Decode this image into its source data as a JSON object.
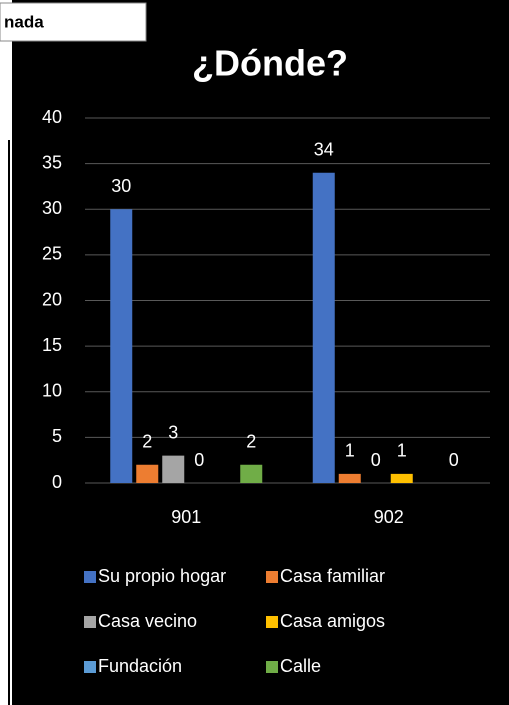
{
  "header_tab": "nada",
  "chart_data": {
    "type": "bar",
    "title": "¿Dónde?",
    "categories": [
      "901",
      "902"
    ],
    "series": [
      {
        "name": "Su propio hogar",
        "color": "#4472c4",
        "values": [
          30,
          34
        ]
      },
      {
        "name": "Casa familiar",
        "color": "#ed7d31",
        "values": [
          2,
          1
        ]
      },
      {
        "name": "Casa vecino",
        "color": "#a5a5a5",
        "values": [
          3,
          0
        ]
      },
      {
        "name": "Casa amigos",
        "color": "#ffc000",
        "values": [
          0,
          1
        ]
      },
      {
        "name": "Fundación",
        "color": "#5b9bd5",
        "values": [
          null,
          null
        ]
      },
      {
        "name": "Calle",
        "color": "#70ad47",
        "values": [
          2,
          0
        ]
      }
    ],
    "ylim": [
      0,
      40
    ],
    "yticks": [
      0,
      5,
      10,
      15,
      20,
      25,
      30,
      35,
      40
    ],
    "grid": true,
    "legend": "bottom"
  }
}
